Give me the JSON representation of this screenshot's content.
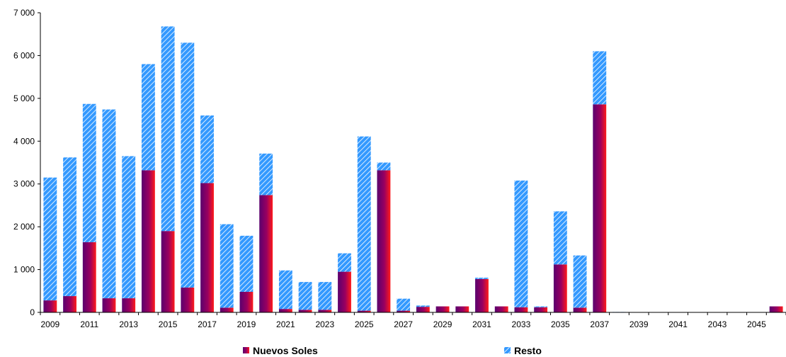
{
  "chart_data": {
    "type": "bar",
    "stacked": true,
    "title": "",
    "xlabel": "",
    "ylabel": "",
    "ylim": [
      0,
      7000
    ],
    "y_ticks": [
      "0",
      "1 000",
      "2 000",
      "3 000",
      "4 000",
      "5 000",
      "6 000",
      "7 000"
    ],
    "grid": false,
    "legend_position": "bottom",
    "categories": [
      "2009",
      "2010",
      "2011",
      "2012",
      "2013",
      "2014",
      "2015",
      "2016",
      "2017",
      "2018",
      "2019",
      "2020",
      "2021",
      "2022",
      "2023",
      "2024",
      "2025",
      "2026",
      "2027",
      "2028",
      "2029",
      "2030",
      "2031",
      "2032",
      "2033",
      "2034",
      "2035",
      "2036",
      "2037",
      "2038",
      "2039",
      "2040",
      "2041",
      "2042",
      "2043",
      "2044",
      "2045",
      "2046"
    ],
    "x_tick_labels": [
      "2009",
      "2011",
      "2013",
      "2015",
      "2017",
      "2019",
      "2021",
      "2023",
      "2025",
      "2027",
      "2029",
      "2031",
      "2033",
      "2035",
      "2037",
      "2039",
      "2041",
      "2043",
      "2045"
    ],
    "series": [
      {
        "name": "Nuevos Soles",
        "color": "#800080",
        "values": [
          280,
          380,
          1640,
          330,
          330,
          3320,
          1900,
          580,
          3020,
          110,
          480,
          2740,
          80,
          60,
          60,
          950,
          40,
          3320,
          40,
          130,
          140,
          140,
          780,
          140,
          120,
          120,
          1120,
          110,
          4860,
          0,
          0,
          0,
          0,
          0,
          0,
          0,
          0,
          140
        ]
      },
      {
        "name": "Resto",
        "color": "#3399ff",
        "values": [
          2870,
          3240,
          3230,
          4410,
          3320,
          2480,
          4780,
          5720,
          1580,
          1950,
          1310,
          970,
          900,
          650,
          650,
          430,
          4070,
          180,
          280,
          30,
          0,
          0,
          30,
          0,
          2960,
          20,
          1240,
          1220,
          1240,
          10,
          0,
          0,
          0,
          0,
          0,
          0,
          0,
          0
        ]
      }
    ]
  }
}
